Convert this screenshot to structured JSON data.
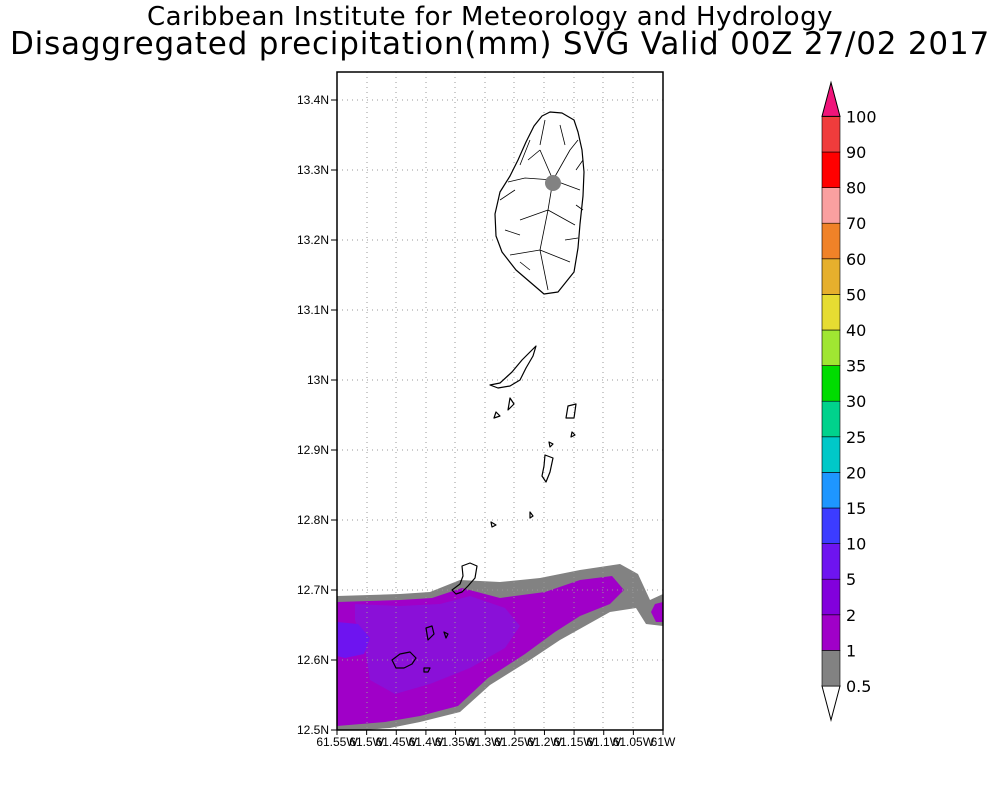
{
  "header": {
    "line1": "Caribbean Institute for Meteorology and Hydrology",
    "line2": "Disaggregated precipitation(mm) SVG Valid 00Z 27/02 2017"
  },
  "map": {
    "lat_range": [
      12.5,
      13.44
    ],
    "lon_range": [
      -61.55,
      -61.0
    ],
    "lat_ticks": [
      {
        "value": 13.4,
        "label": "13.4N"
      },
      {
        "value": 13.3,
        "label": "13.3N"
      },
      {
        "value": 13.2,
        "label": "13.2N"
      },
      {
        "value": 13.1,
        "label": "13.1N"
      },
      {
        "value": 13.0,
        "label": "13N"
      },
      {
        "value": 12.9,
        "label": "12.9N"
      },
      {
        "value": 12.8,
        "label": "12.8N"
      },
      {
        "value": 12.7,
        "label": "12.7N"
      },
      {
        "value": 12.6,
        "label": "12.6N"
      },
      {
        "value": 12.5,
        "label": "12.5N"
      }
    ],
    "lon_ticks": [
      {
        "value": -61.55,
        "label": "61.55W"
      },
      {
        "value": -61.5,
        "label": "61.5W"
      },
      {
        "value": -61.45,
        "label": "61.45W"
      },
      {
        "value": -61.4,
        "label": "61.4W"
      },
      {
        "value": -61.35,
        "label": "61.35W"
      },
      {
        "value": -61.3,
        "label": "61.3W"
      },
      {
        "value": -61.25,
        "label": "61.25W"
      },
      {
        "value": -61.2,
        "label": "61.2W"
      },
      {
        "value": -61.15,
        "label": "61.15W"
      },
      {
        "value": -61.1,
        "label": "61.1W"
      },
      {
        "value": -61.05,
        "label": "61.05W"
      },
      {
        "value": -61.0,
        "label": "61W"
      }
    ],
    "grid": "dotted"
  },
  "colorbar": {
    "levels": [
      {
        "label": "0.5",
        "color": "#ffffff"
      },
      {
        "label": "1",
        "color": "#828282"
      },
      {
        "label": "2",
        "color": "#a000c8"
      },
      {
        "label": "5",
        "color": "#8200dc"
      },
      {
        "label": "10",
        "color": "#6e14f0"
      },
      {
        "label": "15",
        "color": "#3c3cff"
      },
      {
        "label": "20",
        "color": "#1e96ff"
      },
      {
        "label": "25",
        "color": "#00c8c8"
      },
      {
        "label": "30",
        "color": "#00d28c"
      },
      {
        "label": "35",
        "color": "#00dc00"
      },
      {
        "label": "40",
        "color": "#a0e632"
      },
      {
        "label": "50",
        "color": "#e6dc32"
      },
      {
        "label": "60",
        "color": "#e6af2d"
      },
      {
        "label": "70",
        "color": "#f08228"
      },
      {
        "label": "80",
        "color": "#faa0a0"
      },
      {
        "label": "90",
        "color": "#ff0000"
      },
      {
        "label": "100",
        "color": "#f03c3c"
      }
    ],
    "overflow_color": "#f0147a"
  }
}
